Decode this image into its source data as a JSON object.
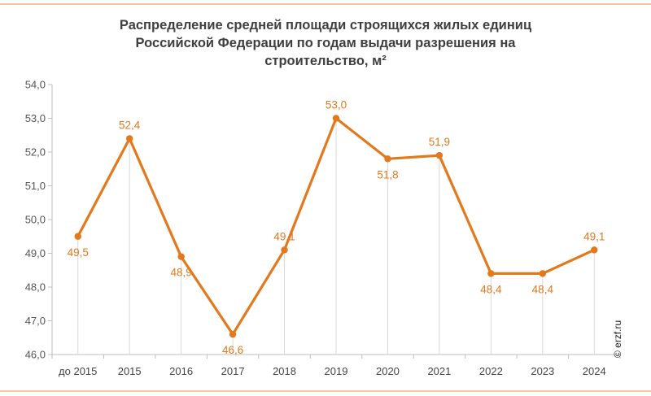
{
  "title_lines": [
    "Распределение средней площади строящихся  жилых единиц",
    "Российской  Федерации по годам выдачи разрешения на",
    "строительство,  м²"
  ],
  "watermark": "© erzf.ru",
  "colors": {
    "line": "#e3791c",
    "axis": "#bfbfbf",
    "guide": "#d9d9d9",
    "text": "#3f3f3f"
  },
  "chart_data": {
    "type": "line",
    "title": "Распределение средней площади строящихся  жилых единиц Российской  Федерации по годам выдачи разрешения на строительство,  м²",
    "categories": [
      "до 2015",
      "2015",
      "2016",
      "2017",
      "2018",
      "2019",
      "2020",
      "2021",
      "2022",
      "2023",
      "2024"
    ],
    "series": [
      {
        "values": [
          49.5,
          52.4,
          48.9,
          46.6,
          49.1,
          53.0,
          51.8,
          51.9,
          48.4,
          48.4,
          49.1
        ],
        "labels": [
          "49,5",
          "52,4",
          "48,9",
          "46,6",
          "49,1",
          "53,0",
          "51,8",
          "51,9",
          "48,4",
          "48,4",
          "49,1"
        ]
      }
    ],
    "yticks": [
      "46,0",
      "47,0",
      "48,0",
      "49,0",
      "50,0",
      "51,0",
      "52,0",
      "53,0",
      "54,0"
    ],
    "ylim": [
      46,
      54
    ],
    "grid": false,
    "legend": "none"
  }
}
